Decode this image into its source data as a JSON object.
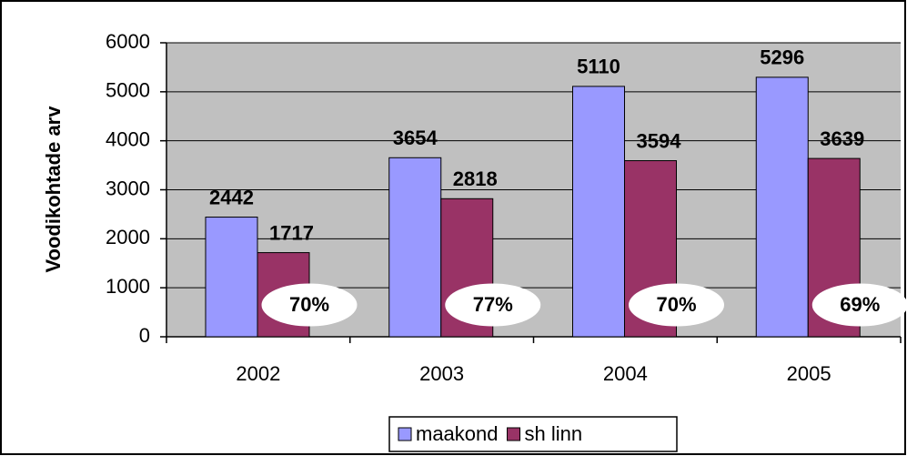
{
  "chart_data": {
    "type": "bar",
    "y_label": "Voodikohtade arv",
    "categories": [
      "2002",
      "2003",
      "2004",
      "2005"
    ],
    "series": [
      {
        "name": "maakond",
        "color": "#9999ff",
        "values": [
          2442,
          3654,
          5110,
          5296
        ]
      },
      {
        "name": "sh linn",
        "color": "#993366",
        "values": [
          1717,
          2818,
          3594,
          3639
        ]
      }
    ],
    "annotations": [
      "70%",
      "77%",
      "70%",
      "69%"
    ],
    "ylim": [
      0,
      6000
    ],
    "yticks": [
      0,
      1000,
      2000,
      3000,
      4000,
      5000,
      6000
    ],
    "grid": true,
    "legend": "bottom"
  }
}
